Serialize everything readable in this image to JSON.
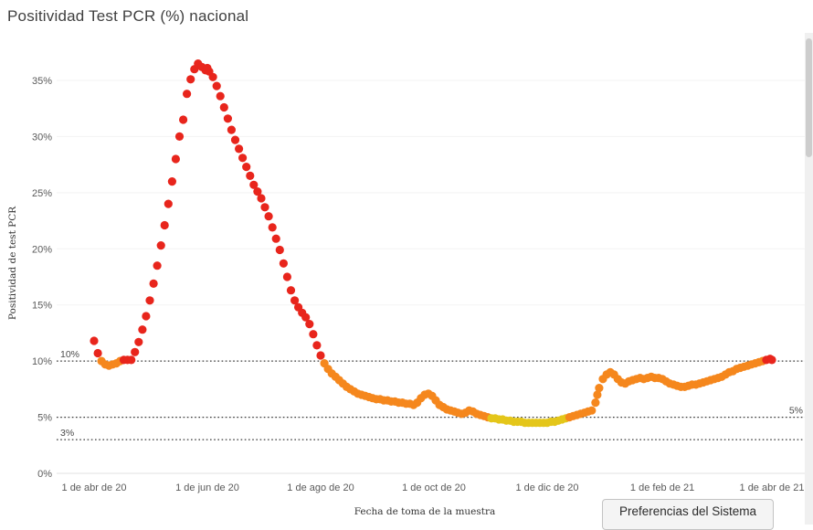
{
  "page": {
    "system_button_label": "Preferencias del Sistema"
  },
  "chart_data": {
    "type": "scatter",
    "title": "Positividad Test PCR (%) nacional",
    "xlabel": "Fecha de toma de la muestra",
    "ylabel": "Positividad de test PCR",
    "x_unit": "days_since_2020-04-01",
    "ylim": [
      0,
      38
    ],
    "grid": "horizontal-light",
    "legend": "none",
    "y_ticks": [
      0,
      5,
      10,
      15,
      20,
      25,
      30,
      35
    ],
    "x_ticks": [
      {
        "day": 0,
        "label": "1 de abr de 20"
      },
      {
        "day": 61,
        "label": "1 de jun de 20"
      },
      {
        "day": 122,
        "label": "1 de ago de 20"
      },
      {
        "day": 183,
        "label": "1 de oct de 20"
      },
      {
        "day": 244,
        "label": "1 de dic de 20"
      },
      {
        "day": 306,
        "label": "1 de feb de 21"
      },
      {
        "day": 365,
        "label": "1 de abr de 21"
      }
    ],
    "reference_lines": [
      {
        "value": 10,
        "label": "10%",
        "label_side": "left"
      },
      {
        "value": 5,
        "label": "5%",
        "label_side": "right"
      },
      {
        "value": 3,
        "label": "3%",
        "label_side": "left"
      }
    ],
    "colors": {
      "red": "#e8251c",
      "orange": "#f5871d",
      "yellow": "#e4c61a"
    },
    "color_rule": {
      "red_above": 10,
      "yellow_below": 5
    },
    "points": [
      [
        0,
        11.8
      ],
      [
        2,
        10.7
      ],
      [
        4,
        10.0
      ],
      [
        6,
        9.7
      ],
      [
        8,
        9.6
      ],
      [
        10,
        9.7
      ],
      [
        12,
        9.8
      ],
      [
        14,
        10.0
      ],
      [
        16,
        10.1
      ],
      [
        18,
        10.1
      ],
      [
        20,
        10.1
      ],
      [
        22,
        10.8
      ],
      [
        24,
        11.7
      ],
      [
        26,
        12.8
      ],
      [
        28,
        14.0
      ],
      [
        30,
        15.4
      ],
      [
        32,
        16.9
      ],
      [
        34,
        18.5
      ],
      [
        36,
        20.3
      ],
      [
        38,
        22.1
      ],
      [
        40,
        24.0
      ],
      [
        42,
        26.0
      ],
      [
        44,
        28.0
      ],
      [
        46,
        30.0
      ],
      [
        48,
        31.5
      ],
      [
        50,
        33.8
      ],
      [
        52,
        35.1
      ],
      [
        54,
        36.0
      ],
      [
        56,
        36.5
      ],
      [
        58,
        36.2
      ],
      [
        60,
        35.9
      ],
      [
        61,
        36.1
      ],
      [
        62,
        35.8
      ],
      [
        64,
        35.3
      ],
      [
        66,
        34.5
      ],
      [
        68,
        33.6
      ],
      [
        70,
        32.6
      ],
      [
        72,
        31.6
      ],
      [
        74,
        30.6
      ],
      [
        76,
        29.7
      ],
      [
        78,
        28.9
      ],
      [
        80,
        28.1
      ],
      [
        82,
        27.3
      ],
      [
        84,
        26.5
      ],
      [
        86,
        25.7
      ],
      [
        88,
        25.1
      ],
      [
        90,
        24.5
      ],
      [
        92,
        23.7
      ],
      [
        94,
        22.9
      ],
      [
        96,
        21.9
      ],
      [
        98,
        20.9
      ],
      [
        100,
        19.9
      ],
      [
        102,
        18.7
      ],
      [
        104,
        17.5
      ],
      [
        106,
        16.3
      ],
      [
        108,
        15.4
      ],
      [
        110,
        14.8
      ],
      [
        112,
        14.3
      ],
      [
        114,
        13.9
      ],
      [
        116,
        13.3
      ],
      [
        118,
        12.4
      ],
      [
        120,
        11.4
      ],
      [
        122,
        10.5
      ],
      [
        124,
        9.8
      ],
      [
        126,
        9.3
      ],
      [
        128,
        8.9
      ],
      [
        130,
        8.6
      ],
      [
        132,
        8.3
      ],
      [
        134,
        8.0
      ],
      [
        136,
        7.7
      ],
      [
        138,
        7.5
      ],
      [
        140,
        7.3
      ],
      [
        142,
        7.1
      ],
      [
        144,
        7.0
      ],
      [
        146,
        6.9
      ],
      [
        148,
        6.8
      ],
      [
        150,
        6.7
      ],
      [
        152,
        6.6
      ],
      [
        154,
        6.6
      ],
      [
        156,
        6.5
      ],
      [
        158,
        6.5
      ],
      [
        160,
        6.4
      ],
      [
        162,
        6.4
      ],
      [
        164,
        6.3
      ],
      [
        166,
        6.3
      ],
      [
        168,
        6.2
      ],
      [
        170,
        6.2
      ],
      [
        172,
        6.1
      ],
      [
        174,
        6.3
      ],
      [
        176,
        6.7
      ],
      [
        178,
        7.0
      ],
      [
        180,
        7.1
      ],
      [
        182,
        6.9
      ],
      [
        184,
        6.5
      ],
      [
        186,
        6.1
      ],
      [
        188,
        5.9
      ],
      [
        190,
        5.7
      ],
      [
        192,
        5.6
      ],
      [
        194,
        5.5
      ],
      [
        196,
        5.4
      ],
      [
        198,
        5.3
      ],
      [
        200,
        5.4
      ],
      [
        202,
        5.6
      ],
      [
        204,
        5.5
      ],
      [
        206,
        5.3
      ],
      [
        208,
        5.2
      ],
      [
        210,
        5.1
      ],
      [
        212,
        5.0
      ],
      [
        214,
        4.9
      ],
      [
        216,
        4.9
      ],
      [
        218,
        4.8
      ],
      [
        220,
        4.8
      ],
      [
        222,
        4.7
      ],
      [
        224,
        4.7
      ],
      [
        226,
        4.6
      ],
      [
        228,
        4.6
      ],
      [
        230,
        4.6
      ],
      [
        232,
        4.5
      ],
      [
        234,
        4.5
      ],
      [
        236,
        4.5
      ],
      [
        238,
        4.5
      ],
      [
        240,
        4.5
      ],
      [
        242,
        4.5
      ],
      [
        244,
        4.5
      ],
      [
        246,
        4.6
      ],
      [
        248,
        4.6
      ],
      [
        250,
        4.7
      ],
      [
        252,
        4.8
      ],
      [
        254,
        4.9
      ],
      [
        256,
        5.0
      ],
      [
        258,
        5.1
      ],
      [
        260,
        5.2
      ],
      [
        262,
        5.3
      ],
      [
        264,
        5.4
      ],
      [
        266,
        5.5
      ],
      [
        268,
        5.6
      ],
      [
        270,
        6.3
      ],
      [
        271,
        7.0
      ],
      [
        272,
        7.6
      ],
      [
        274,
        8.4
      ],
      [
        276,
        8.8
      ],
      [
        278,
        9.0
      ],
      [
        280,
        8.8
      ],
      [
        282,
        8.4
      ],
      [
        284,
        8.1
      ],
      [
        286,
        8.0
      ],
      [
        288,
        8.2
      ],
      [
        290,
        8.3
      ],
      [
        292,
        8.4
      ],
      [
        294,
        8.5
      ],
      [
        296,
        8.4
      ],
      [
        298,
        8.5
      ],
      [
        300,
        8.6
      ],
      [
        302,
        8.5
      ],
      [
        304,
        8.5
      ],
      [
        306,
        8.4
      ],
      [
        308,
        8.2
      ],
      [
        310,
        8.0
      ],
      [
        312,
        7.9
      ],
      [
        314,
        7.8
      ],
      [
        316,
        7.7
      ],
      [
        318,
        7.7
      ],
      [
        320,
        7.8
      ],
      [
        322,
        7.9
      ],
      [
        324,
        7.9
      ],
      [
        326,
        8.0
      ],
      [
        328,
        8.1
      ],
      [
        330,
        8.2
      ],
      [
        332,
        8.3
      ],
      [
        334,
        8.4
      ],
      [
        336,
        8.5
      ],
      [
        338,
        8.6
      ],
      [
        340,
        8.8
      ],
      [
        342,
        9.0
      ],
      [
        344,
        9.1
      ],
      [
        346,
        9.3
      ],
      [
        348,
        9.4
      ],
      [
        350,
        9.5
      ],
      [
        352,
        9.6
      ],
      [
        354,
        9.7
      ],
      [
        356,
        9.8
      ],
      [
        358,
        9.9
      ],
      [
        360,
        10.0
      ],
      [
        362,
        10.1
      ],
      [
        364,
        10.2
      ],
      [
        365,
        10.1
      ]
    ]
  }
}
